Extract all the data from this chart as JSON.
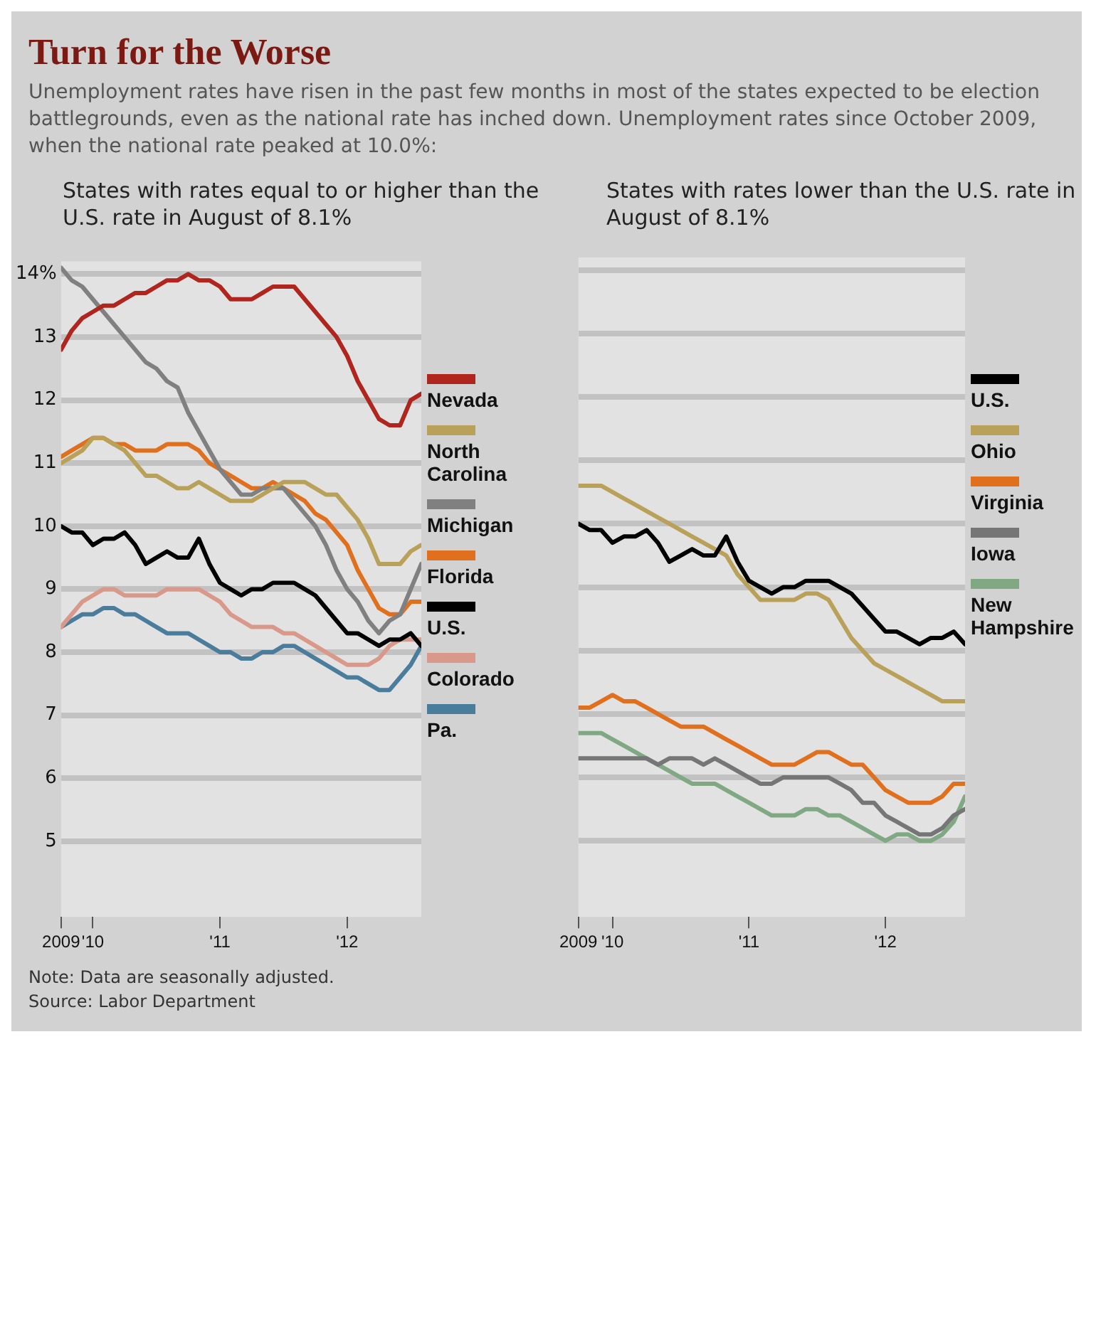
{
  "chart_data": [
    {
      "type": "line",
      "title": "Turn for the Worse",
      "subtitle": "States with rates equal to or higher than the U.S. rate in August of 8.1%",
      "annotations": [
        "Unemployment rates have risen in the past few months in most of the states expected to be election battlegrounds, even as the national rate has inched down. Unemployment rates since October 2009, when the national rate peaked at 10.0%:",
        "Note: Data are seasonally adjusted.",
        "Source: Labor Department"
      ],
      "x": [
        "2009-10",
        "2009-11",
        "2009-12",
        "2010-01",
        "2010-02",
        "2010-03",
        "2010-04",
        "2010-05",
        "2010-06",
        "2010-07",
        "2010-08",
        "2010-09",
        "2010-10",
        "2010-11",
        "2010-12",
        "2011-01",
        "2011-02",
        "2011-03",
        "2011-04",
        "2011-05",
        "2011-06",
        "2011-07",
        "2011-08",
        "2011-09",
        "2011-10",
        "2011-11",
        "2011-12",
        "2012-01",
        "2012-02",
        "2012-03",
        "2012-04",
        "2012-05",
        "2012-06",
        "2012-07",
        "2012-08"
      ],
      "series": [
        {
          "name": "Nevada",
          "color": "#b0261e",
          "values": [
            12.8,
            13.1,
            13.3,
            13.4,
            13.5,
            13.5,
            13.6,
            13.7,
            13.7,
            13.8,
            13.9,
            13.9,
            14.0,
            13.9,
            13.9,
            13.8,
            13.6,
            13.6,
            13.6,
            13.7,
            13.8,
            13.8,
            13.8,
            13.6,
            13.4,
            13.2,
            13.0,
            12.7,
            12.3,
            12.0,
            11.7,
            11.6,
            11.6,
            12.0,
            12.1
          ]
        },
        {
          "name": "North Carolina",
          "color": "#b9a15a",
          "values": [
            11.0,
            11.1,
            11.2,
            11.4,
            11.4,
            11.3,
            11.2,
            11.0,
            10.8,
            10.8,
            10.7,
            10.6,
            10.6,
            10.7,
            10.6,
            10.5,
            10.4,
            10.4,
            10.4,
            10.5,
            10.6,
            10.7,
            10.7,
            10.7,
            10.6,
            10.5,
            10.5,
            10.3,
            10.1,
            9.8,
            9.4,
            9.4,
            9.4,
            9.6,
            9.7
          ]
        },
        {
          "name": "Michigan",
          "color": "#808080",
          "values": [
            14.1,
            13.9,
            13.8,
            13.6,
            13.4,
            13.2,
            13.0,
            12.8,
            12.6,
            12.5,
            12.3,
            12.2,
            11.8,
            11.5,
            11.2,
            10.9,
            10.7,
            10.5,
            10.5,
            10.6,
            10.6,
            10.6,
            10.4,
            10.2,
            10.0,
            9.7,
            9.3,
            9.0,
            8.8,
            8.5,
            8.3,
            8.5,
            8.6,
            9.0,
            9.4
          ]
        },
        {
          "name": "Florida",
          "color": "#e0701e",
          "values": [
            11.1,
            11.2,
            11.3,
            11.4,
            11.4,
            11.3,
            11.3,
            11.2,
            11.2,
            11.2,
            11.3,
            11.3,
            11.3,
            11.2,
            11.0,
            10.9,
            10.8,
            10.7,
            10.6,
            10.6,
            10.7,
            10.6,
            10.5,
            10.4,
            10.2,
            10.1,
            9.9,
            9.7,
            9.3,
            9.0,
            8.7,
            8.6,
            8.6,
            8.8,
            8.8
          ]
        },
        {
          "name": "U.S.",
          "color": "#000000",
          "values": [
            10.0,
            9.9,
            9.9,
            9.7,
            9.8,
            9.8,
            9.9,
            9.7,
            9.4,
            9.5,
            9.6,
            9.5,
            9.5,
            9.8,
            9.4,
            9.1,
            9.0,
            8.9,
            9.0,
            9.0,
            9.1,
            9.1,
            9.1,
            9.0,
            8.9,
            8.7,
            8.5,
            8.3,
            8.3,
            8.2,
            8.1,
            8.2,
            8.2,
            8.3,
            8.1
          ]
        },
        {
          "name": "Colorado",
          "color": "#d9998a",
          "values": [
            8.4,
            8.6,
            8.8,
            8.9,
            9.0,
            9.0,
            8.9,
            8.9,
            8.9,
            8.9,
            9.0,
            9.0,
            9.0,
            9.0,
            8.9,
            8.8,
            8.6,
            8.5,
            8.4,
            8.4,
            8.4,
            8.3,
            8.3,
            8.2,
            8.1,
            8.0,
            7.9,
            7.8,
            7.8,
            7.8,
            7.9,
            8.1,
            8.2,
            8.2,
            8.2
          ]
        },
        {
          "name": "Pa.",
          "color": "#4a7c9c",
          "values": [
            8.4,
            8.5,
            8.6,
            8.6,
            8.7,
            8.7,
            8.6,
            8.6,
            8.5,
            8.4,
            8.3,
            8.3,
            8.3,
            8.2,
            8.1,
            8.0,
            8.0,
            7.9,
            7.9,
            8.0,
            8.0,
            8.1,
            8.1,
            8.0,
            7.9,
            7.8,
            7.7,
            7.6,
            7.6,
            7.5,
            7.4,
            7.4,
            7.6,
            7.8,
            8.1
          ]
        }
      ],
      "xlim": [
        "2009-10",
        "2012-08"
      ],
      "xticks": [
        {
          "value": "2009-10",
          "label": "2009"
        },
        {
          "value": "2010-01",
          "label": "'10"
        },
        {
          "value": "2011-01",
          "label": "'11"
        },
        {
          "value": "2012-01",
          "label": "'12"
        }
      ],
      "ylim": [
        3.8,
        14.2
      ],
      "yticks": [
        5,
        6,
        7,
        8,
        9,
        10,
        11,
        12,
        13,
        {
          "value": 14,
          "label": "14%"
        }
      ],
      "grid": "y",
      "legend": "right",
      "marker": "none",
      "line_style": "solid"
    },
    {
      "type": "line",
      "subtitle": "States with rates lower than the U.S. rate in August of 8.1%",
      "x": [
        "2009-10",
        "2009-11",
        "2009-12",
        "2010-01",
        "2010-02",
        "2010-03",
        "2010-04",
        "2010-05",
        "2010-06",
        "2010-07",
        "2010-08",
        "2010-09",
        "2010-10",
        "2010-11",
        "2010-12",
        "2011-01",
        "2011-02",
        "2011-03",
        "2011-04",
        "2011-05",
        "2011-06",
        "2011-07",
        "2011-08",
        "2011-09",
        "2011-10",
        "2011-11",
        "2011-12",
        "2012-01",
        "2012-02",
        "2012-03",
        "2012-04",
        "2012-05",
        "2012-06",
        "2012-07",
        "2012-08"
      ],
      "series": [
        {
          "name": "U.S.",
          "color": "#000000",
          "values": [
            10.0,
            9.9,
            9.9,
            9.7,
            9.8,
            9.8,
            9.9,
            9.7,
            9.4,
            9.5,
            9.6,
            9.5,
            9.5,
            9.8,
            9.4,
            9.1,
            9.0,
            8.9,
            9.0,
            9.0,
            9.1,
            9.1,
            9.1,
            9.0,
            8.9,
            8.7,
            8.5,
            8.3,
            8.3,
            8.2,
            8.1,
            8.2,
            8.2,
            8.3,
            8.1
          ]
        },
        {
          "name": "Ohio",
          "color": "#b9a15a",
          "values": [
            10.6,
            10.6,
            10.6,
            10.5,
            10.4,
            10.3,
            10.2,
            10.1,
            10.0,
            9.9,
            9.8,
            9.7,
            9.6,
            9.5,
            9.2,
            9.0,
            8.8,
            8.8,
            8.8,
            8.8,
            8.9,
            8.9,
            8.8,
            8.5,
            8.2,
            8.0,
            7.8,
            7.7,
            7.6,
            7.5,
            7.4,
            7.3,
            7.2,
            7.2,
            7.2
          ]
        },
        {
          "name": "Virginia",
          "color": "#e0701e",
          "values": [
            7.1,
            7.1,
            7.2,
            7.3,
            7.2,
            7.2,
            7.1,
            7.0,
            6.9,
            6.8,
            6.8,
            6.8,
            6.7,
            6.6,
            6.5,
            6.4,
            6.3,
            6.2,
            6.2,
            6.2,
            6.3,
            6.4,
            6.4,
            6.3,
            6.2,
            6.2,
            6.0,
            5.8,
            5.7,
            5.6,
            5.6,
            5.6,
            5.7,
            5.9,
            5.9
          ]
        },
        {
          "name": "Iowa",
          "color": "#767676",
          "values": [
            6.3,
            6.3,
            6.3,
            6.3,
            6.3,
            6.3,
            6.3,
            6.2,
            6.3,
            6.3,
            6.3,
            6.2,
            6.3,
            6.2,
            6.1,
            6.0,
            5.9,
            5.9,
            6.0,
            6.0,
            6.0,
            6.0,
            6.0,
            5.9,
            5.8,
            5.6,
            5.6,
            5.4,
            5.3,
            5.2,
            5.1,
            5.1,
            5.2,
            5.4,
            5.5
          ]
        },
        {
          "name": "New Hampshire",
          "color": "#7fa883",
          "values": [
            6.7,
            6.7,
            6.7,
            6.6,
            6.5,
            6.4,
            6.3,
            6.2,
            6.1,
            6.0,
            5.9,
            5.9,
            5.9,
            5.8,
            5.7,
            5.6,
            5.5,
            5.4,
            5.4,
            5.4,
            5.5,
            5.5,
            5.4,
            5.4,
            5.3,
            5.2,
            5.1,
            5.0,
            5.1,
            5.1,
            5.0,
            5.0,
            5.1,
            5.3,
            5.7
          ]
        }
      ],
      "xlim": [
        "2009-10",
        "2012-08"
      ],
      "xticks": [
        {
          "value": "2009-10",
          "label": "2009"
        },
        {
          "value": "2010-01",
          "label": "'10"
        },
        {
          "value": "2011-01",
          "label": "'11"
        },
        {
          "value": "2012-01",
          "label": "'12"
        }
      ],
      "ylim": [
        3.8,
        14.2
      ],
      "yticks": [
        5,
        6,
        7,
        8,
        9,
        10,
        11,
        12,
        13,
        14
      ],
      "grid": "y",
      "legend": "right",
      "marker": "none",
      "line_style": "solid",
      "tick_labels": "x"
    }
  ]
}
